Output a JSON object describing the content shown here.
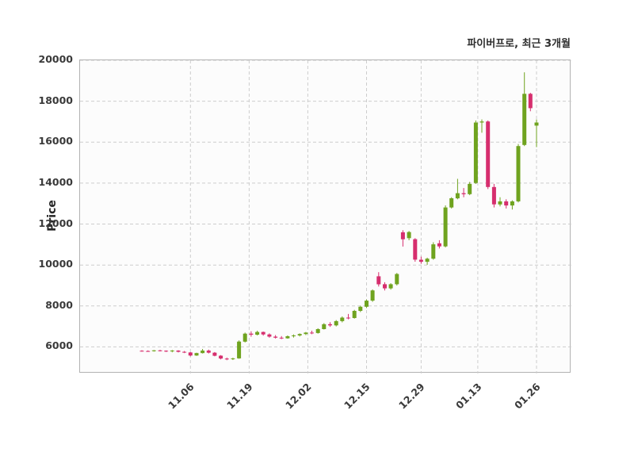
{
  "header": {
    "title": "파이버프로, 최근 3개월"
  },
  "chart_data": {
    "type": "candlestick",
    "title": "파이버프로, 최근 3개월",
    "xlabel": "",
    "ylabel": "Price",
    "ylim": [
      4700,
      20000
    ],
    "y_ticks": [
      6000,
      8000,
      10000,
      12000,
      14000,
      16000,
      18000,
      20000
    ],
    "x_ticks": [
      {
        "label": "11.06",
        "index": 8
      },
      {
        "label": "11.19",
        "index": 17.67
      },
      {
        "label": "12.02",
        "index": 27.33
      },
      {
        "label": "12.15",
        "index": 37
      },
      {
        "label": "12.29",
        "index": 46
      },
      {
        "label": "01.13",
        "index": 55.33
      },
      {
        "label": "01.26",
        "index": 65
      }
    ],
    "up_color": "#6fa31f",
    "down_color": "#d62e6e",
    "grid": true,
    "legend": "none",
    "candle_columns": [
      "date",
      "open",
      "high",
      "low",
      "close"
    ],
    "candles": [
      [
        "10.25",
        5810,
        5840,
        5770,
        5800
      ],
      [
        "10.26",
        5800,
        5830,
        5760,
        5790
      ],
      [
        "10.27",
        5790,
        5850,
        5770,
        5830
      ],
      [
        "10.30",
        5830,
        5860,
        5780,
        5810
      ],
      [
        "10.31",
        5810,
        5830,
        5750,
        5780
      ],
      [
        "11.01",
        5780,
        5850,
        5740,
        5820
      ],
      [
        "11.02",
        5820,
        5840,
        5730,
        5760
      ],
      [
        "11.03",
        5760,
        5800,
        5700,
        5730
      ],
      [
        "11.06",
        5730,
        5750,
        5540,
        5580
      ],
      [
        "11.07",
        5580,
        5720,
        5560,
        5700
      ],
      [
        "11.08",
        5700,
        5900,
        5680,
        5820
      ],
      [
        "11.09",
        5820,
        5870,
        5680,
        5720
      ],
      [
        "11.10",
        5720,
        5750,
        5540,
        5570
      ],
      [
        "11.13",
        5570,
        5600,
        5390,
        5430
      ],
      [
        "11.14",
        5430,
        5480,
        5350,
        5400
      ],
      [
        "11.15",
        5400,
        5470,
        5360,
        5440
      ],
      [
        "11.16",
        5440,
        6320,
        5420,
        6260
      ],
      [
        "11.17",
        6260,
        6700,
        6220,
        6650
      ],
      [
        "11.20",
        6650,
        6760,
        6500,
        6600
      ],
      [
        "11.21",
        6600,
        6790,
        6560,
        6730
      ],
      [
        "11.22",
        6730,
        6750,
        6550,
        6610
      ],
      [
        "11.23",
        6610,
        6660,
        6450,
        6500
      ],
      [
        "11.24",
        6500,
        6580,
        6410,
        6450
      ],
      [
        "11.27",
        6450,
        6530,
        6380,
        6420
      ],
      [
        "11.28",
        6420,
        6560,
        6400,
        6520
      ],
      [
        "11.29",
        6520,
        6610,
        6460,
        6560
      ],
      [
        "11.30",
        6560,
        6660,
        6510,
        6630
      ],
      [
        "12.01",
        6630,
        6730,
        6580,
        6700
      ],
      [
        "12.04",
        6700,
        6790,
        6620,
        6680
      ],
      [
        "12.05",
        6680,
        6910,
        6650,
        6870
      ],
      [
        "12.06",
        6870,
        7160,
        6850,
        7110
      ],
      [
        "12.07",
        7110,
        7210,
        6980,
        7050
      ],
      [
        "12.08",
        7050,
        7310,
        7000,
        7260
      ],
      [
        "12.11",
        7260,
        7490,
        7200,
        7430
      ],
      [
        "12.12",
        7430,
        7610,
        7350,
        7410
      ],
      [
        "12.13",
        7410,
        7810,
        7380,
        7760
      ],
      [
        "12.14",
        7760,
        8010,
        7700,
        7960
      ],
      [
        "12.15",
        7960,
        8310,
        7900,
        8260
      ],
      [
        "12.18",
        8260,
        8810,
        8200,
        8760
      ],
      [
        "12.19",
        9450,
        9650,
        8950,
        9060
      ],
      [
        "12.20",
        9060,
        9160,
        8760,
        8860
      ],
      [
        "12.21",
        8860,
        9110,
        8800,
        9060
      ],
      [
        "12.22",
        9060,
        9610,
        9000,
        9560
      ],
      [
        "12.26",
        11600,
        11700,
        10900,
        11260
      ],
      [
        "12.27",
        11310,
        11660,
        11210,
        11610
      ],
      [
        "12.28",
        11260,
        11310,
        10160,
        10260
      ],
      [
        "12.29",
        10260,
        10410,
        10060,
        10160
      ],
      [
        "01.02",
        10160,
        10360,
        10010,
        10310
      ],
      [
        "01.03",
        10310,
        11110,
        10260,
        11010
      ],
      [
        "01.04",
        11060,
        11210,
        10810,
        10910
      ],
      [
        "01.05",
        10910,
        12910,
        10860,
        12810
      ],
      [
        "01.08",
        12810,
        13310,
        12760,
        13260
      ],
      [
        "01.09",
        13260,
        14210,
        13210,
        13510
      ],
      [
        "01.10",
        13510,
        13760,
        13310,
        13460
      ],
      [
        "01.11",
        13460,
        14060,
        13410,
        13960
      ],
      [
        "01.12",
        14010,
        17060,
        13960,
        16960
      ],
      [
        "01.15",
        16960,
        17110,
        16460,
        17010
      ],
      [
        "01.16",
        17010,
        17060,
        13710,
        13810
      ],
      [
        "01.17",
        13810,
        13960,
        12810,
        12960
      ],
      [
        "01.18",
        12960,
        13310,
        12860,
        13110
      ],
      [
        "01.19",
        13110,
        13210,
        12760,
        12910
      ],
      [
        "01.22",
        12910,
        13160,
        12710,
        13110
      ],
      [
        "01.23",
        13110,
        15910,
        13060,
        15810
      ],
      [
        "01.24",
        15860,
        19410,
        15810,
        18360
      ],
      [
        "01.25",
        18360,
        18410,
        17510,
        17660
      ],
      [
        "01.26",
        16810,
        17110,
        15760,
        16960
      ]
    ]
  }
}
